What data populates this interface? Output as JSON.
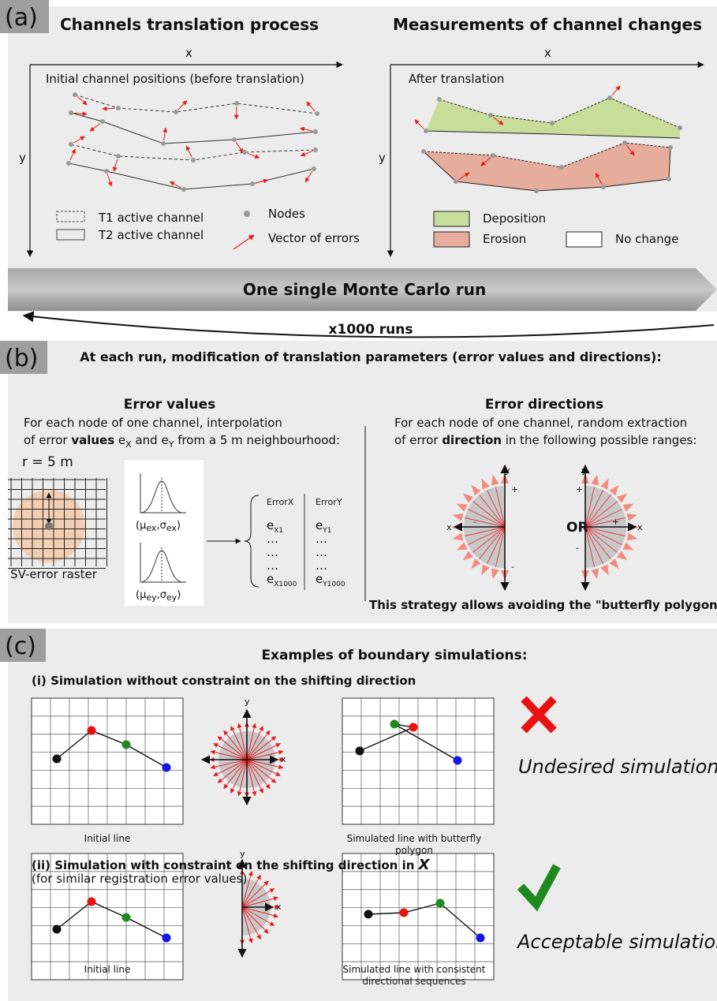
{
  "panel_a": {
    "label": "(a)",
    "left": {
      "title": "Channels translation process",
      "x_axis": "x",
      "y_axis": "y",
      "caption": "Initial channel positions (before translation)"
    },
    "right": {
      "title": "Measurements of channel changes",
      "x_axis": "x",
      "y_axis": "y",
      "caption": "After translation"
    },
    "legend": {
      "t1": "T1 active channel",
      "t2": "T2 active channel",
      "nodes": "Nodes",
      "vectors": "Vector of errors",
      "deposition": "Deposition",
      "erosion": "Erosion",
      "no_change": "No change"
    },
    "run": "One single Monte Carlo run",
    "repeat": "x1000 runs"
  },
  "panel_b": {
    "label": "(b)",
    "heading": "At each run, modification of translation parameters (error values and directions):",
    "values": {
      "title": "Error values",
      "line1": "For each node of one channel, interpolation",
      "line2": [
        "of error ",
        "values",
        " e",
        "X",
        " and e",
        "Y",
        " from a 5 m neighbourhood:"
      ],
      "radius": "r = 5 m",
      "raster": "SV-error raster",
      "mu_x": [
        "(μ",
        "ex",
        ",σ",
        "ex",
        ")"
      ],
      "mu_y": [
        "(μ",
        "ey",
        ",σ",
        "ey",
        ")"
      ],
      "table": {
        "headers": [
          "ErrorX",
          "ErrorY"
        ],
        "rows": [
          [
            [
              "e",
              "X1"
            ],
            [
              "e",
              "Y1"
            ]
          ],
          [
            "…",
            "…"
          ],
          [
            "…",
            "…"
          ],
          [
            "…",
            "…"
          ],
          [
            [
              "e",
              "X1000"
            ],
            [
              "e",
              "Y1000"
            ]
          ]
        ]
      }
    },
    "directions": {
      "title": "Error directions",
      "line1": "For each node of one channel, random extraction",
      "line2": [
        "of error ",
        "direction",
        " in the following possible ranges:"
      ],
      "or": "OR",
      "left_fan": {
        "y": "y",
        "x": "x",
        "plus_y": "+",
        "minus_y": "-",
        "minus_x": "-"
      },
      "right_fan": {
        "y": "y",
        "x": "x",
        "plus_y": "+",
        "minus_y": "-",
        "plus_x": "+"
      }
    },
    "note": "This strategy allows avoiding the \"butterfly polygon\" issue"
  },
  "panel_c": {
    "label": "(c)",
    "heading": "Examples of boundary simulations:",
    "case_i": {
      "title": "(i) Simulation without constraint on the shifting direction",
      "fan": {
        "y": "y",
        "x": "x"
      },
      "initial": "Initial line",
      "simulated": [
        "Simulated line with butterfly",
        "polygon"
      ],
      "verdict": "Undesired simulation"
    },
    "case_ii": {
      "title": [
        "(ii) Simulation with constraint on the shifting direction in ",
        "X"
      ],
      "subtitle": "(for similar registration error values)",
      "fan": {
        "y": "y",
        "x": "x"
      },
      "initial": "Initial line",
      "simulated": [
        "Simulated line with consistent",
        "directional sequences"
      ],
      "verdict": "Acceptable simulation"
    }
  }
}
